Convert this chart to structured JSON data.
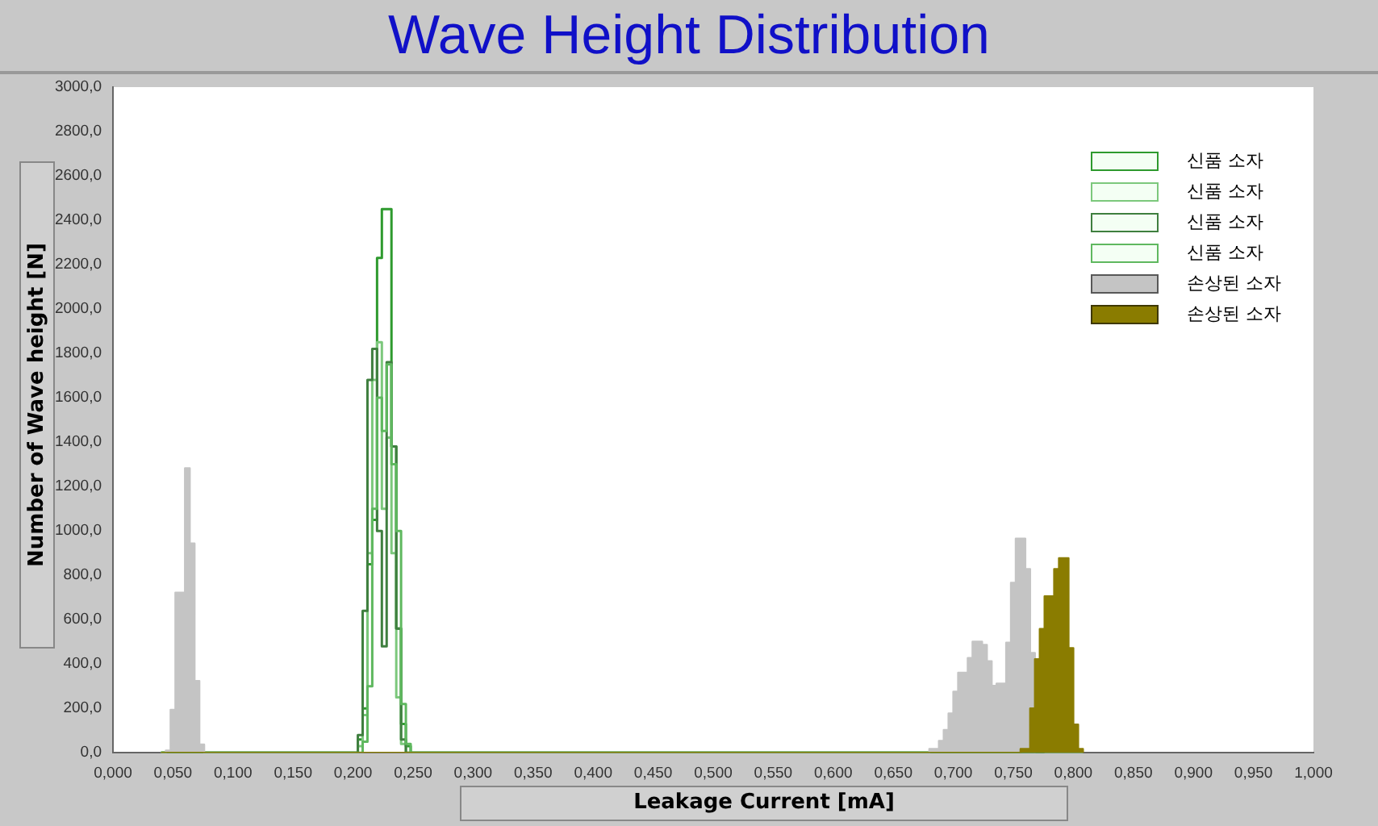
{
  "chart_data": {
    "type": "histogram",
    "title": "Wave Height Distribution",
    "xlabel": "Leakage Current [mA]",
    "ylabel": "Number of Wave height [N]",
    "xlim": [
      0,
      1
    ],
    "xticks": [
      {
        "value": 0,
        "label": "0,000"
      },
      {
        "value": 0.05,
        "label": "0,050"
      },
      {
        "value": 0.1,
        "label": "0,100"
      },
      {
        "value": 0.15,
        "label": "0,150"
      },
      {
        "value": 0.2,
        "label": "0,200"
      },
      {
        "value": 0.25,
        "label": "0,250"
      },
      {
        "value": 0.3,
        "label": "0,300"
      },
      {
        "value": 0.35,
        "label": "0,350"
      },
      {
        "value": 0.4,
        "label": "0,400"
      },
      {
        "value": 0.45,
        "label": "0,450"
      },
      {
        "value": 0.5,
        "label": "0,500"
      },
      {
        "value": 0.55,
        "label": "0,550"
      },
      {
        "value": 0.6,
        "label": "0,600"
      },
      {
        "value": 0.65,
        "label": "0,650"
      },
      {
        "value": 0.7,
        "label": "0,700"
      },
      {
        "value": 0.75,
        "label": "0,750"
      },
      {
        "value": 0.8,
        "label": "0,800"
      },
      {
        "value": 0.85,
        "label": "0,850"
      },
      {
        "value": 0.9,
        "label": "0,900"
      },
      {
        "value": 0.95,
        "label": "0,950"
      },
      {
        "value": 1,
        "label": "1,000"
      }
    ],
    "ylim": [
      0,
      3000
    ],
    "yticks": [
      {
        "value": 0,
        "label": "0,0"
      },
      {
        "value": 200,
        "label": "200,0"
      },
      {
        "value": 400,
        "label": "400,0"
      },
      {
        "value": 600,
        "label": "600,0"
      },
      {
        "value": 800,
        "label": "800,0"
      },
      {
        "value": 1000,
        "label": "1000,0"
      },
      {
        "value": 1200,
        "label": "1200,0"
      },
      {
        "value": 1400,
        "label": "1400,0"
      },
      {
        "value": 1600,
        "label": "1600,0"
      },
      {
        "value": 1800,
        "label": "1800,0"
      },
      {
        "value": 2000,
        "label": "2000,0"
      },
      {
        "value": 2200,
        "label": "2200,0"
      },
      {
        "value": 2400,
        "label": "2400,0"
      },
      {
        "value": 2600,
        "label": "2600,0"
      },
      {
        "value": 2800,
        "label": "2800,0"
      },
      {
        "value": 3000,
        "label": "3000,0"
      }
    ],
    "grid": false,
    "legend": "top right",
    "bins": [
      0.04,
      0.044,
      0.048,
      0.052,
      0.056,
      0.06,
      0.064,
      0.068,
      0.072,
      0.076,
      0.08,
      0.2,
      0.204,
      0.208,
      0.212,
      0.216,
      0.22,
      0.224,
      0.228,
      0.232,
      0.236,
      0.24,
      0.244,
      0.248,
      0.252,
      0.68,
      0.684,
      0.688,
      0.692,
      0.696,
      0.7,
      0.704,
      0.708,
      0.712,
      0.716,
      0.72,
      0.724,
      0.728,
      0.732,
      0.736,
      0.74,
      0.744,
      0.748,
      0.752,
      0.756,
      0.76,
      0.764,
      0.768,
      0.772,
      0.776,
      0.78,
      0.784,
      0.788,
      0.792,
      0.796,
      0.8,
      0.804,
      0.808
    ],
    "series": [
      {
        "name": "신품 소자",
        "color": "#2e9a2e",
        "values": [
          0,
          0,
          0,
          0,
          0,
          0,
          0,
          0,
          0,
          0,
          0,
          0,
          60,
          200,
          850,
          1050,
          2230,
          2450,
          2450,
          1380,
          560,
          130,
          30,
          0,
          0,
          0,
          0,
          0,
          0,
          0,
          0,
          0,
          0,
          0,
          0,
          0,
          0,
          0,
          0,
          0,
          0,
          0,
          0,
          0,
          0,
          0,
          0,
          0,
          0,
          0,
          0,
          0,
          0,
          0,
          0,
          0,
          0
        ]
      },
      {
        "name": "신품 소자",
        "color": "#7cc87c",
        "values": [
          0,
          0,
          0,
          0,
          0,
          0,
          0,
          0,
          0,
          0,
          0,
          0,
          30,
          170,
          900,
          1680,
          1850,
          1100,
          1420,
          900,
          250,
          40,
          0,
          0,
          0,
          0,
          0,
          0,
          0,
          0,
          0,
          0,
          0,
          0,
          0,
          0,
          0,
          0,
          0,
          0,
          0,
          0,
          0,
          0,
          0,
          0,
          0,
          0,
          0,
          0,
          0,
          0,
          0,
          0,
          0,
          0,
          0
        ]
      },
      {
        "name": "신품 소자",
        "color": "#3f7f3f",
        "values": [
          0,
          0,
          0,
          0,
          0,
          0,
          0,
          0,
          0,
          0,
          0,
          0,
          80,
          640,
          1680,
          1820,
          1000,
          480,
          1760,
          1380,
          560,
          60,
          0,
          0,
          0,
          0,
          0,
          0,
          0,
          0,
          0,
          0,
          0,
          0,
          0,
          0,
          0,
          0,
          0,
          0,
          0,
          0,
          0,
          0,
          0,
          0,
          0,
          0,
          0,
          0,
          0,
          0,
          0,
          0,
          0,
          0,
          0
        ]
      },
      {
        "name": "신품 소자",
        "color": "#5fb85f",
        "values": [
          0,
          0,
          0,
          0,
          0,
          0,
          0,
          0,
          0,
          0,
          0,
          0,
          0,
          50,
          300,
          1100,
          1600,
          1450,
          1750,
          1300,
          1000,
          220,
          40,
          0,
          0,
          0,
          0,
          0,
          0,
          0,
          0,
          0,
          0,
          0,
          0,
          0,
          0,
          0,
          0,
          0,
          0,
          0,
          0,
          0,
          0,
          0,
          0,
          0,
          0,
          0,
          0,
          0,
          0,
          0,
          0,
          0,
          0
        ]
      },
      {
        "name": "손상된 소자",
        "color": "#c4c4c4",
        "values": [
          0,
          10,
          194,
          722,
          722,
          1282,
          943,
          324,
          37,
          0,
          0,
          0,
          0,
          0,
          0,
          0,
          0,
          0,
          0,
          0,
          0,
          0,
          0,
          0,
          0,
          17,
          17,
          54,
          103,
          177,
          275,
          361,
          361,
          427,
          501,
          501,
          486,
          413,
          302,
          312,
          312,
          496,
          766,
          965,
          965,
          828,
          450,
          null,
          null,
          0,
          0,
          0,
          0,
          0,
          0,
          0,
          0
        ]
      },
      {
        "name": "손상된 소자",
        "color": "#8a7c00",
        "values": [
          0,
          0,
          0,
          0,
          0,
          0,
          0,
          0,
          0,
          0,
          0,
          0,
          0,
          0,
          0,
          0,
          0,
          0,
          0,
          0,
          0,
          0,
          0,
          0,
          0,
          0,
          0,
          0,
          0,
          0,
          0,
          0,
          0,
          0,
          0,
          0,
          0,
          0,
          0,
          0,
          0,
          0,
          0,
          0,
          17,
          17,
          200,
          422,
          558,
          705,
          705,
          828,
          877,
          877,
          472,
          127,
          17
        ]
      }
    ]
  }
}
